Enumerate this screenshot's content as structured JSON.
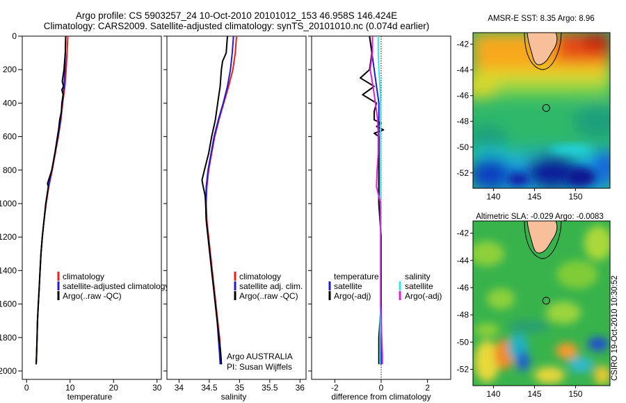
{
  "header": {
    "line1": "Argo profile: CS 5903257_24 10-Oct-2010 20101012_153 46.958S 146.424E",
    "line2": "Climatology: CARS2009. Satellite-adjusted climatology: synTS_20101010.nc (0.074d earlier)"
  },
  "annotations": {
    "program": "Argo AUSTRALIA",
    "pi": "PI: Susan Wijffels",
    "stamp": "CSIRO 19-Oct-2010 10:30:52"
  },
  "colors": {
    "climatology": "#ee1c1c",
    "satellite": "#1c1cd6",
    "argo": "#000000",
    "sal_satellite": "#2ee8ee",
    "sal_argo": "#e21ed4"
  },
  "map_legend": {
    "sst": "AMSR-E SST: 8.35 Argo: 8.96",
    "sla": "Altimetric SLA: -0.029 Argo: -0.0083"
  },
  "chart_data": [
    {
      "type": "line",
      "xlabel": "temperature",
      "ylabel": "",
      "xlim": [
        -1,
        31
      ],
      "ylim": [
        0,
        2050
      ],
      "y_reversed": true,
      "xticks": [
        0,
        10,
        20,
        30
      ],
      "yticks": [
        0,
        200,
        400,
        600,
        800,
        1000,
        1200,
        1400,
        1600,
        1800,
        2000
      ],
      "legend": [
        "climatology",
        "satellite-adjusted climatology",
        "Argo(..raw -QC)"
      ],
      "series": [
        {
          "name": "climatology",
          "depth": [
            0,
            100,
            200,
            300,
            400,
            500,
            600,
            700,
            800,
            900,
            1000,
            1100,
            1200,
            1300,
            1400,
            1500,
            1600,
            1700,
            1800,
            1900,
            1960
          ],
          "values": [
            9.5,
            9.3,
            9.1,
            8.8,
            8.3,
            7.9,
            7.3,
            6.6,
            5.9,
            5.1,
            4.5,
            4.0,
            3.6,
            3.3,
            3.1,
            2.9,
            2.7,
            2.5,
            2.4,
            2.3,
            2.2
          ]
        },
        {
          "name": "satellite-adjusted climatology",
          "depth": [
            0,
            100,
            200,
            300,
            400,
            500,
            600,
            700,
            800,
            900,
            1000,
            1100,
            1200,
            1300,
            1400,
            1500,
            1600,
            1700,
            1800,
            1900,
            1960
          ],
          "values": [
            9.0,
            8.9,
            8.8,
            8.6,
            8.2,
            7.8,
            7.2,
            6.5,
            5.8,
            5.0,
            4.4,
            4.0,
            3.6,
            3.3,
            3.1,
            2.9,
            2.7,
            2.5,
            2.4,
            2.3,
            2.2
          ]
        },
        {
          "name": "Argo(..raw -QC)",
          "depth": [
            0,
            100,
            200,
            270,
            300,
            320,
            350,
            400,
            450,
            500,
            550,
            600,
            700,
            800,
            880,
            900,
            1000,
            1100,
            1200,
            1300,
            1400,
            1500,
            1600,
            1700,
            1800,
            1900,
            1960
          ],
          "values": [
            9.0,
            8.9,
            8.6,
            8.2,
            8.5,
            8.1,
            8.4,
            8.1,
            8.0,
            7.6,
            7.4,
            7.1,
            6.5,
            5.8,
            4.8,
            5.0,
            4.4,
            4.0,
            3.6,
            3.3,
            3.1,
            2.9,
            2.7,
            2.5,
            2.4,
            2.3,
            2.2
          ]
        }
      ]
    },
    {
      "type": "line",
      "xlabel": "salinity",
      "ylabel": "",
      "xlim": [
        33.8,
        36.1
      ],
      "ylim": [
        0,
        2050
      ],
      "y_reversed": true,
      "xticks": [
        34,
        34.5,
        35,
        35.5,
        36
      ],
      "yticks": [
        0,
        200,
        400,
        600,
        800,
        1000,
        1200,
        1400,
        1600,
        1800,
        2000
      ],
      "legend": [
        "climatology",
        "satellite adj. clim.",
        "Argo(..raw -QC)"
      ],
      "series": [
        {
          "name": "climatology",
          "depth": [
            0,
            100,
            200,
            300,
            400,
            500,
            600,
            700,
            800,
            900,
            1000,
            1100,
            1200,
            1300,
            1400,
            1500,
            1600,
            1700,
            1800,
            1900,
            1960
          ],
          "values": [
            34.95,
            34.93,
            34.89,
            34.82,
            34.74,
            34.66,
            34.59,
            34.54,
            34.49,
            34.46,
            34.45,
            34.46,
            34.49,
            34.52,
            34.55,
            34.58,
            34.61,
            34.64,
            34.67,
            34.69,
            34.7
          ]
        },
        {
          "name": "satellite adj. clim.",
          "depth": [
            0,
            100,
            200,
            300,
            400,
            500,
            600,
            700,
            800,
            900,
            1000,
            1100,
            1200,
            1300,
            1400,
            1500,
            1600,
            1700,
            1800,
            1900,
            1960
          ],
          "values": [
            34.9,
            34.88,
            34.85,
            34.8,
            34.73,
            34.65,
            34.58,
            34.53,
            34.48,
            34.45,
            34.44,
            34.45,
            34.48,
            34.51,
            34.54,
            34.57,
            34.6,
            34.63,
            34.65,
            34.67,
            34.68
          ]
        },
        {
          "name": "Argo(..raw -QC)",
          "depth": [
            0,
            100,
            150,
            200,
            300,
            400,
            500,
            600,
            700,
            800,
            860,
            900,
            950,
            1000,
            1100,
            1200,
            1300,
            1400,
            1500,
            1600,
            1700,
            1800,
            1900,
            1960
          ],
          "values": [
            34.8,
            34.78,
            34.72,
            34.7,
            34.68,
            34.64,
            34.6,
            34.54,
            34.49,
            34.42,
            34.38,
            34.4,
            34.43,
            34.44,
            34.45,
            34.48,
            34.51,
            34.54,
            34.57,
            34.6,
            34.63,
            34.66,
            34.69,
            34.7
          ]
        }
      ]
    },
    {
      "type": "line",
      "xlabel": "difference from climatology",
      "ylabel": "",
      "xlim": [
        -3,
        3
      ],
      "ylim": [
        0,
        2050
      ],
      "y_reversed": true,
      "xticks": [
        -2,
        0,
        2
      ],
      "yticks": [
        0,
        200,
        400,
        600,
        800,
        1000,
        1200,
        1400,
        1600,
        1800,
        2000
      ],
      "legend_groups": [
        {
          "title": "temperature",
          "entries": [
            "satellite",
            "Argo(-adj)"
          ]
        },
        {
          "title": "salinity",
          "entries": [
            "satellite",
            "Argo(-adj)"
          ]
        }
      ],
      "series": [
        {
          "name": "temperature satellite",
          "depth": [
            0,
            100,
            200,
            300,
            400,
            500,
            600,
            700,
            800,
            900,
            1000,
            1200,
            1400,
            1600,
            1800,
            1960
          ],
          "values": [
            -0.5,
            -0.4,
            -0.3,
            -0.2,
            -0.1,
            -0.1,
            -0.1,
            -0.1,
            -0.1,
            -0.1,
            -0.1,
            0.0,
            0.0,
            0.0,
            0.0,
            0.0
          ]
        },
        {
          "name": "temperature Argo(-adj)",
          "depth": [
            0,
            100,
            200,
            250,
            300,
            350,
            400,
            450,
            500,
            520,
            540,
            560,
            580,
            600,
            700,
            800,
            900,
            1000,
            1200,
            1400,
            1600,
            1800,
            1960
          ],
          "values": [
            -0.5,
            -0.4,
            -0.5,
            -0.9,
            -0.3,
            -0.8,
            -0.2,
            -0.3,
            -0.3,
            0.0,
            -0.2,
            0.1,
            -0.3,
            -0.1,
            -0.1,
            -0.1,
            -0.1,
            -0.1,
            0.0,
            0.0,
            0.0,
            -0.1,
            -0.1
          ]
        },
        {
          "name": "salinity satellite",
          "depth": [
            0,
            100,
            200,
            300,
            400,
            500,
            600,
            700,
            800,
            900,
            1000,
            1200,
            1400,
            1600,
            1800,
            1960
          ],
          "values": [
            -0.05,
            -0.05,
            -0.04,
            -0.02,
            -0.01,
            -0.01,
            -0.01,
            -0.01,
            -0.01,
            -0.01,
            -0.01,
            -0.01,
            -0.01,
            -0.01,
            -0.02,
            -0.02
          ]
        },
        {
          "name": "salinity Argo(-adj)",
          "depth": [
            0,
            100,
            200,
            300,
            400,
            500,
            600,
            700,
            800,
            900,
            1000,
            1200,
            1400,
            1600,
            1700,
            1800,
            1900,
            1960
          ],
          "values": [
            -0.15,
            -0.15,
            -0.19,
            -0.14,
            -0.1,
            -0.06,
            -0.05,
            -0.05,
            -0.07,
            -0.08,
            -0.01,
            -0.01,
            -0.01,
            -0.01,
            0.0,
            0.01,
            0.02,
            0.02
          ]
        }
      ]
    },
    {
      "type": "heatmap",
      "title": "AMSR-E SST: 8.35 Argo: 8.96",
      "xlim": [
        137.5,
        154.2
      ],
      "ylim": [
        -53.2,
        -41.1
      ],
      "xticks": [
        140,
        145,
        150
      ],
      "yticks": [
        -42,
        -44,
        -46,
        -48,
        -50,
        -52
      ],
      "marker": {
        "lon": 146.424,
        "lat": -46.958
      }
    },
    {
      "type": "heatmap",
      "title": "Altimetric SLA: -0.029 Argo: -0.0083",
      "xlim": [
        137.5,
        154.2
      ],
      "ylim": [
        -53.2,
        -41.1
      ],
      "xticks": [
        140,
        145,
        150
      ],
      "yticks": [
        -42,
        -44,
        -46,
        -48,
        -50,
        -52
      ],
      "marker": {
        "lon": 146.424,
        "lat": -46.958
      }
    }
  ]
}
